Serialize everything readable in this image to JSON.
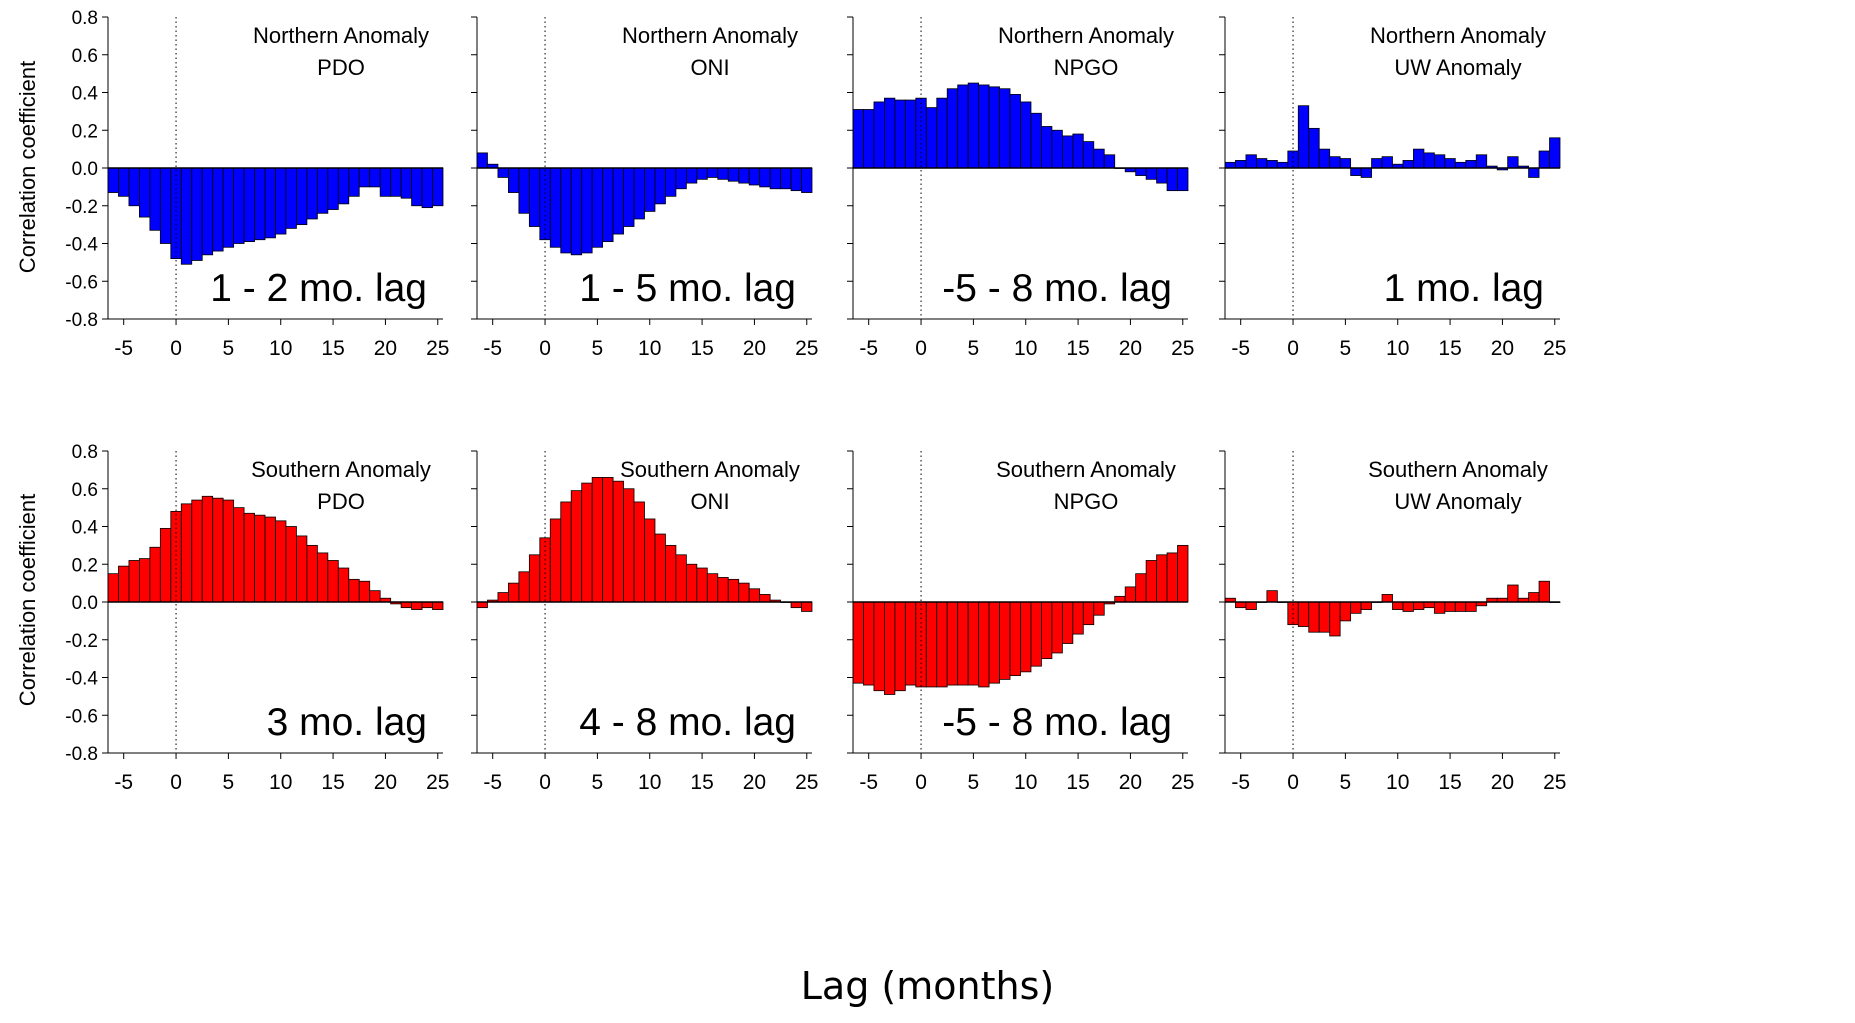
{
  "figure": {
    "x_axis_label": "Lag (months)",
    "y_axis_label": "Correlation coefficient",
    "colors": {
      "northern": "#0000ff",
      "southern": "#ff0000",
      "zero_line": "#000000"
    }
  },
  "chart_data": [
    {
      "type": "bar",
      "row": "northern",
      "title": "Northern Anomaly",
      "subtitle": "PDO",
      "annotation": "1 - 2 mo. lag",
      "x": [
        -6,
        -5,
        -4,
        -3,
        -2,
        -1,
        0,
        1,
        2,
        3,
        4,
        5,
        6,
        7,
        8,
        9,
        10,
        11,
        12,
        13,
        14,
        15,
        16,
        17,
        18,
        19,
        20,
        21,
        22,
        23,
        24,
        25
      ],
      "values": [
        -0.13,
        -0.15,
        -0.2,
        -0.26,
        -0.33,
        -0.4,
        -0.48,
        -0.51,
        -0.49,
        -0.46,
        -0.44,
        -0.42,
        -0.4,
        -0.39,
        -0.38,
        -0.37,
        -0.35,
        -0.32,
        -0.3,
        -0.27,
        -0.24,
        -0.22,
        -0.19,
        -0.15,
        -0.1,
        -0.1,
        -0.15,
        -0.15,
        -0.16,
        -0.2,
        -0.21,
        -0.2
      ],
      "xticks": [
        -5,
        0,
        5,
        10,
        15,
        20,
        25
      ],
      "xlim": [
        -6.5,
        25.5
      ],
      "yticks": [
        -0.8,
        -0.6,
        -0.4,
        -0.2,
        0.0,
        0.2,
        0.4,
        0.6,
        0.8
      ],
      "ylim": [
        -0.8,
        0.8
      ],
      "color": "#0000ff"
    },
    {
      "type": "bar",
      "row": "northern",
      "title": "Northern Anomaly",
      "subtitle": "ONI",
      "annotation": "1 - 5 mo. lag",
      "x": [
        -6,
        -5,
        -4,
        -3,
        -2,
        -1,
        0,
        1,
        2,
        3,
        4,
        5,
        6,
        7,
        8,
        9,
        10,
        11,
        12,
        13,
        14,
        15,
        16,
        17,
        18,
        19,
        20,
        21,
        22,
        23,
        24,
        25
      ],
      "values": [
        0.08,
        0.02,
        -0.05,
        -0.13,
        -0.24,
        -0.31,
        -0.38,
        -0.42,
        -0.45,
        -0.46,
        -0.45,
        -0.42,
        -0.39,
        -0.35,
        -0.31,
        -0.27,
        -0.23,
        -0.19,
        -0.15,
        -0.11,
        -0.08,
        -0.06,
        -0.05,
        -0.06,
        -0.07,
        -0.08,
        -0.09,
        -0.1,
        -0.11,
        -0.11,
        -0.12,
        -0.13
      ],
      "xticks": [
        -5,
        0,
        5,
        10,
        15,
        20,
        25
      ],
      "xlim": [
        -6.5,
        25.5
      ],
      "yticks": [
        -0.8,
        -0.6,
        -0.4,
        -0.2,
        0.0,
        0.2,
        0.4,
        0.6,
        0.8
      ],
      "ylim": [
        -0.8,
        0.8
      ],
      "color": "#0000ff"
    },
    {
      "type": "bar",
      "row": "northern",
      "title": "Northern Anomaly",
      "subtitle": "NPGO",
      "annotation": "-5 - 8 mo. lag",
      "x": [
        -6,
        -5,
        -4,
        -3,
        -2,
        -1,
        0,
        1,
        2,
        3,
        4,
        5,
        6,
        7,
        8,
        9,
        10,
        11,
        12,
        13,
        14,
        15,
        16,
        17,
        18,
        19,
        20,
        21,
        22,
        23,
        24,
        25
      ],
      "values": [
        0.31,
        0.31,
        0.35,
        0.37,
        0.36,
        0.36,
        0.37,
        0.32,
        0.37,
        0.42,
        0.44,
        0.45,
        0.44,
        0.43,
        0.42,
        0.39,
        0.35,
        0.29,
        0.22,
        0.2,
        0.17,
        0.18,
        0.14,
        0.1,
        0.07,
        0.0,
        -0.02,
        -0.04,
        -0.06,
        -0.08,
        -0.12,
        -0.12
      ],
      "xticks": [
        -5,
        0,
        5,
        10,
        15,
        20,
        25
      ],
      "xlim": [
        -6.5,
        25.5
      ],
      "yticks": [
        -0.8,
        -0.6,
        -0.4,
        -0.2,
        0.0,
        0.2,
        0.4,
        0.6,
        0.8
      ],
      "ylim": [
        -0.8,
        0.8
      ],
      "color": "#0000ff"
    },
    {
      "type": "bar",
      "row": "northern",
      "title": "Northern Anomaly",
      "subtitle": "UW Anomaly",
      "annotation": "1 mo. lag",
      "x": [
        -6,
        -5,
        -4,
        -3,
        -2,
        -1,
        0,
        1,
        2,
        3,
        4,
        5,
        6,
        7,
        8,
        9,
        10,
        11,
        12,
        13,
        14,
        15,
        16,
        17,
        18,
        19,
        20,
        21,
        22,
        23,
        24,
        25
      ],
      "values": [
        0.03,
        0.04,
        0.07,
        0.05,
        0.04,
        0.03,
        0.09,
        0.33,
        0.21,
        0.1,
        0.06,
        0.05,
        -0.04,
        -0.05,
        0.05,
        0.06,
        0.02,
        0.04,
        0.1,
        0.08,
        0.07,
        0.05,
        0.03,
        0.04,
        0.07,
        0.01,
        -0.01,
        0.06,
        0.01,
        -0.05,
        0.09,
        0.16
      ],
      "xticks": [
        -5,
        0,
        5,
        10,
        15,
        20,
        25
      ],
      "xlim": [
        -6.5,
        25.5
      ],
      "yticks": [
        -0.8,
        -0.6,
        -0.4,
        -0.2,
        0.0,
        0.2,
        0.4,
        0.6,
        0.8
      ],
      "ylim": [
        -0.8,
        0.8
      ],
      "color": "#0000ff"
    },
    {
      "type": "bar",
      "row": "southern",
      "title": "Southern Anomaly",
      "subtitle": "PDO",
      "annotation": "3 mo. lag",
      "x": [
        -6,
        -5,
        -4,
        -3,
        -2,
        -1,
        0,
        1,
        2,
        3,
        4,
        5,
        6,
        7,
        8,
        9,
        10,
        11,
        12,
        13,
        14,
        15,
        16,
        17,
        18,
        19,
        20,
        21,
        22,
        23,
        24,
        25
      ],
      "values": [
        0.15,
        0.19,
        0.22,
        0.23,
        0.29,
        0.39,
        0.48,
        0.52,
        0.54,
        0.56,
        0.55,
        0.54,
        0.5,
        0.47,
        0.46,
        0.45,
        0.43,
        0.4,
        0.35,
        0.3,
        0.26,
        0.22,
        0.18,
        0.12,
        0.11,
        0.06,
        0.02,
        -0.01,
        -0.03,
        -0.04,
        -0.03,
        -0.04
      ],
      "xticks": [
        -5,
        0,
        5,
        10,
        15,
        20,
        25
      ],
      "xlim": [
        -6.5,
        25.5
      ],
      "yticks": [
        -0.8,
        -0.6,
        -0.4,
        -0.2,
        0.0,
        0.2,
        0.4,
        0.6,
        0.8
      ],
      "ylim": [
        -0.8,
        0.8
      ],
      "color": "#ff0000"
    },
    {
      "type": "bar",
      "row": "southern",
      "title": "Southern Anomaly",
      "subtitle": "ONI",
      "annotation": "4 - 8 mo. lag",
      "x": [
        -6,
        -5,
        -4,
        -3,
        -2,
        -1,
        0,
        1,
        2,
        3,
        4,
        5,
        6,
        7,
        8,
        9,
        10,
        11,
        12,
        13,
        14,
        15,
        16,
        17,
        18,
        19,
        20,
        21,
        22,
        23,
        24,
        25
      ],
      "values": [
        -0.03,
        0.01,
        0.05,
        0.1,
        0.16,
        0.25,
        0.34,
        0.44,
        0.53,
        0.59,
        0.63,
        0.66,
        0.66,
        0.64,
        0.6,
        0.53,
        0.44,
        0.36,
        0.3,
        0.25,
        0.2,
        0.18,
        0.15,
        0.13,
        0.12,
        0.1,
        0.07,
        0.04,
        0.01,
        0.0,
        -0.03,
        -0.05
      ],
      "xticks": [
        -5,
        0,
        5,
        10,
        15,
        20,
        25
      ],
      "xlim": [
        -6.5,
        25.5
      ],
      "yticks": [
        -0.8,
        -0.6,
        -0.4,
        -0.2,
        0.0,
        0.2,
        0.4,
        0.6,
        0.8
      ],
      "ylim": [
        -0.8,
        0.8
      ],
      "color": "#ff0000"
    },
    {
      "type": "bar",
      "row": "southern",
      "title": "Southern Anomaly",
      "subtitle": "NPGO",
      "annotation": "-5 - 8 mo. lag",
      "x": [
        -6,
        -5,
        -4,
        -3,
        -2,
        -1,
        0,
        1,
        2,
        3,
        4,
        5,
        6,
        7,
        8,
        9,
        10,
        11,
        12,
        13,
        14,
        15,
        16,
        17,
        18,
        19,
        20,
        21,
        22,
        23,
        24,
        25
      ],
      "values": [
        -0.43,
        -0.44,
        -0.47,
        -0.49,
        -0.47,
        -0.44,
        -0.45,
        -0.45,
        -0.45,
        -0.44,
        -0.44,
        -0.44,
        -0.45,
        -0.43,
        -0.41,
        -0.39,
        -0.37,
        -0.34,
        -0.3,
        -0.27,
        -0.22,
        -0.17,
        -0.12,
        -0.07,
        -0.01,
        0.03,
        0.08,
        0.15,
        0.22,
        0.25,
        0.26,
        0.3
      ],
      "xticks": [
        -5,
        0,
        5,
        10,
        15,
        20,
        25
      ],
      "xlim": [
        -6.5,
        25.5
      ],
      "yticks": [
        -0.8,
        -0.6,
        -0.4,
        -0.2,
        0.0,
        0.2,
        0.4,
        0.6,
        0.8
      ],
      "ylim": [
        -0.8,
        0.8
      ],
      "color": "#ff0000"
    },
    {
      "type": "bar",
      "row": "southern",
      "title": "Southern Anomaly",
      "subtitle": "UW Anomaly",
      "annotation": "",
      "x": [
        -6,
        -5,
        -4,
        -3,
        -2,
        -1,
        0,
        1,
        2,
        3,
        4,
        5,
        6,
        7,
        8,
        9,
        10,
        11,
        12,
        13,
        14,
        15,
        16,
        17,
        18,
        19,
        20,
        21,
        22,
        23,
        24,
        25
      ],
      "values": [
        0.02,
        -0.03,
        -0.04,
        0.0,
        0.06,
        0.0,
        -0.12,
        -0.13,
        -0.16,
        -0.16,
        -0.18,
        -0.1,
        -0.06,
        -0.04,
        0.0,
        0.04,
        -0.04,
        -0.05,
        -0.04,
        -0.03,
        -0.06,
        -0.05,
        -0.05,
        -0.05,
        -0.02,
        0.02,
        0.02,
        0.09,
        0.02,
        0.05,
        0.11,
        0.0
      ],
      "xticks": [
        -5,
        0,
        5,
        10,
        15,
        20,
        25
      ],
      "xlim": [
        -6.5,
        25.5
      ],
      "yticks": [
        -0.8,
        -0.6,
        -0.4,
        -0.2,
        0.0,
        0.2,
        0.4,
        0.6,
        0.8
      ],
      "ylim": [
        -0.8,
        0.8
      ],
      "color": "#ff0000"
    }
  ]
}
